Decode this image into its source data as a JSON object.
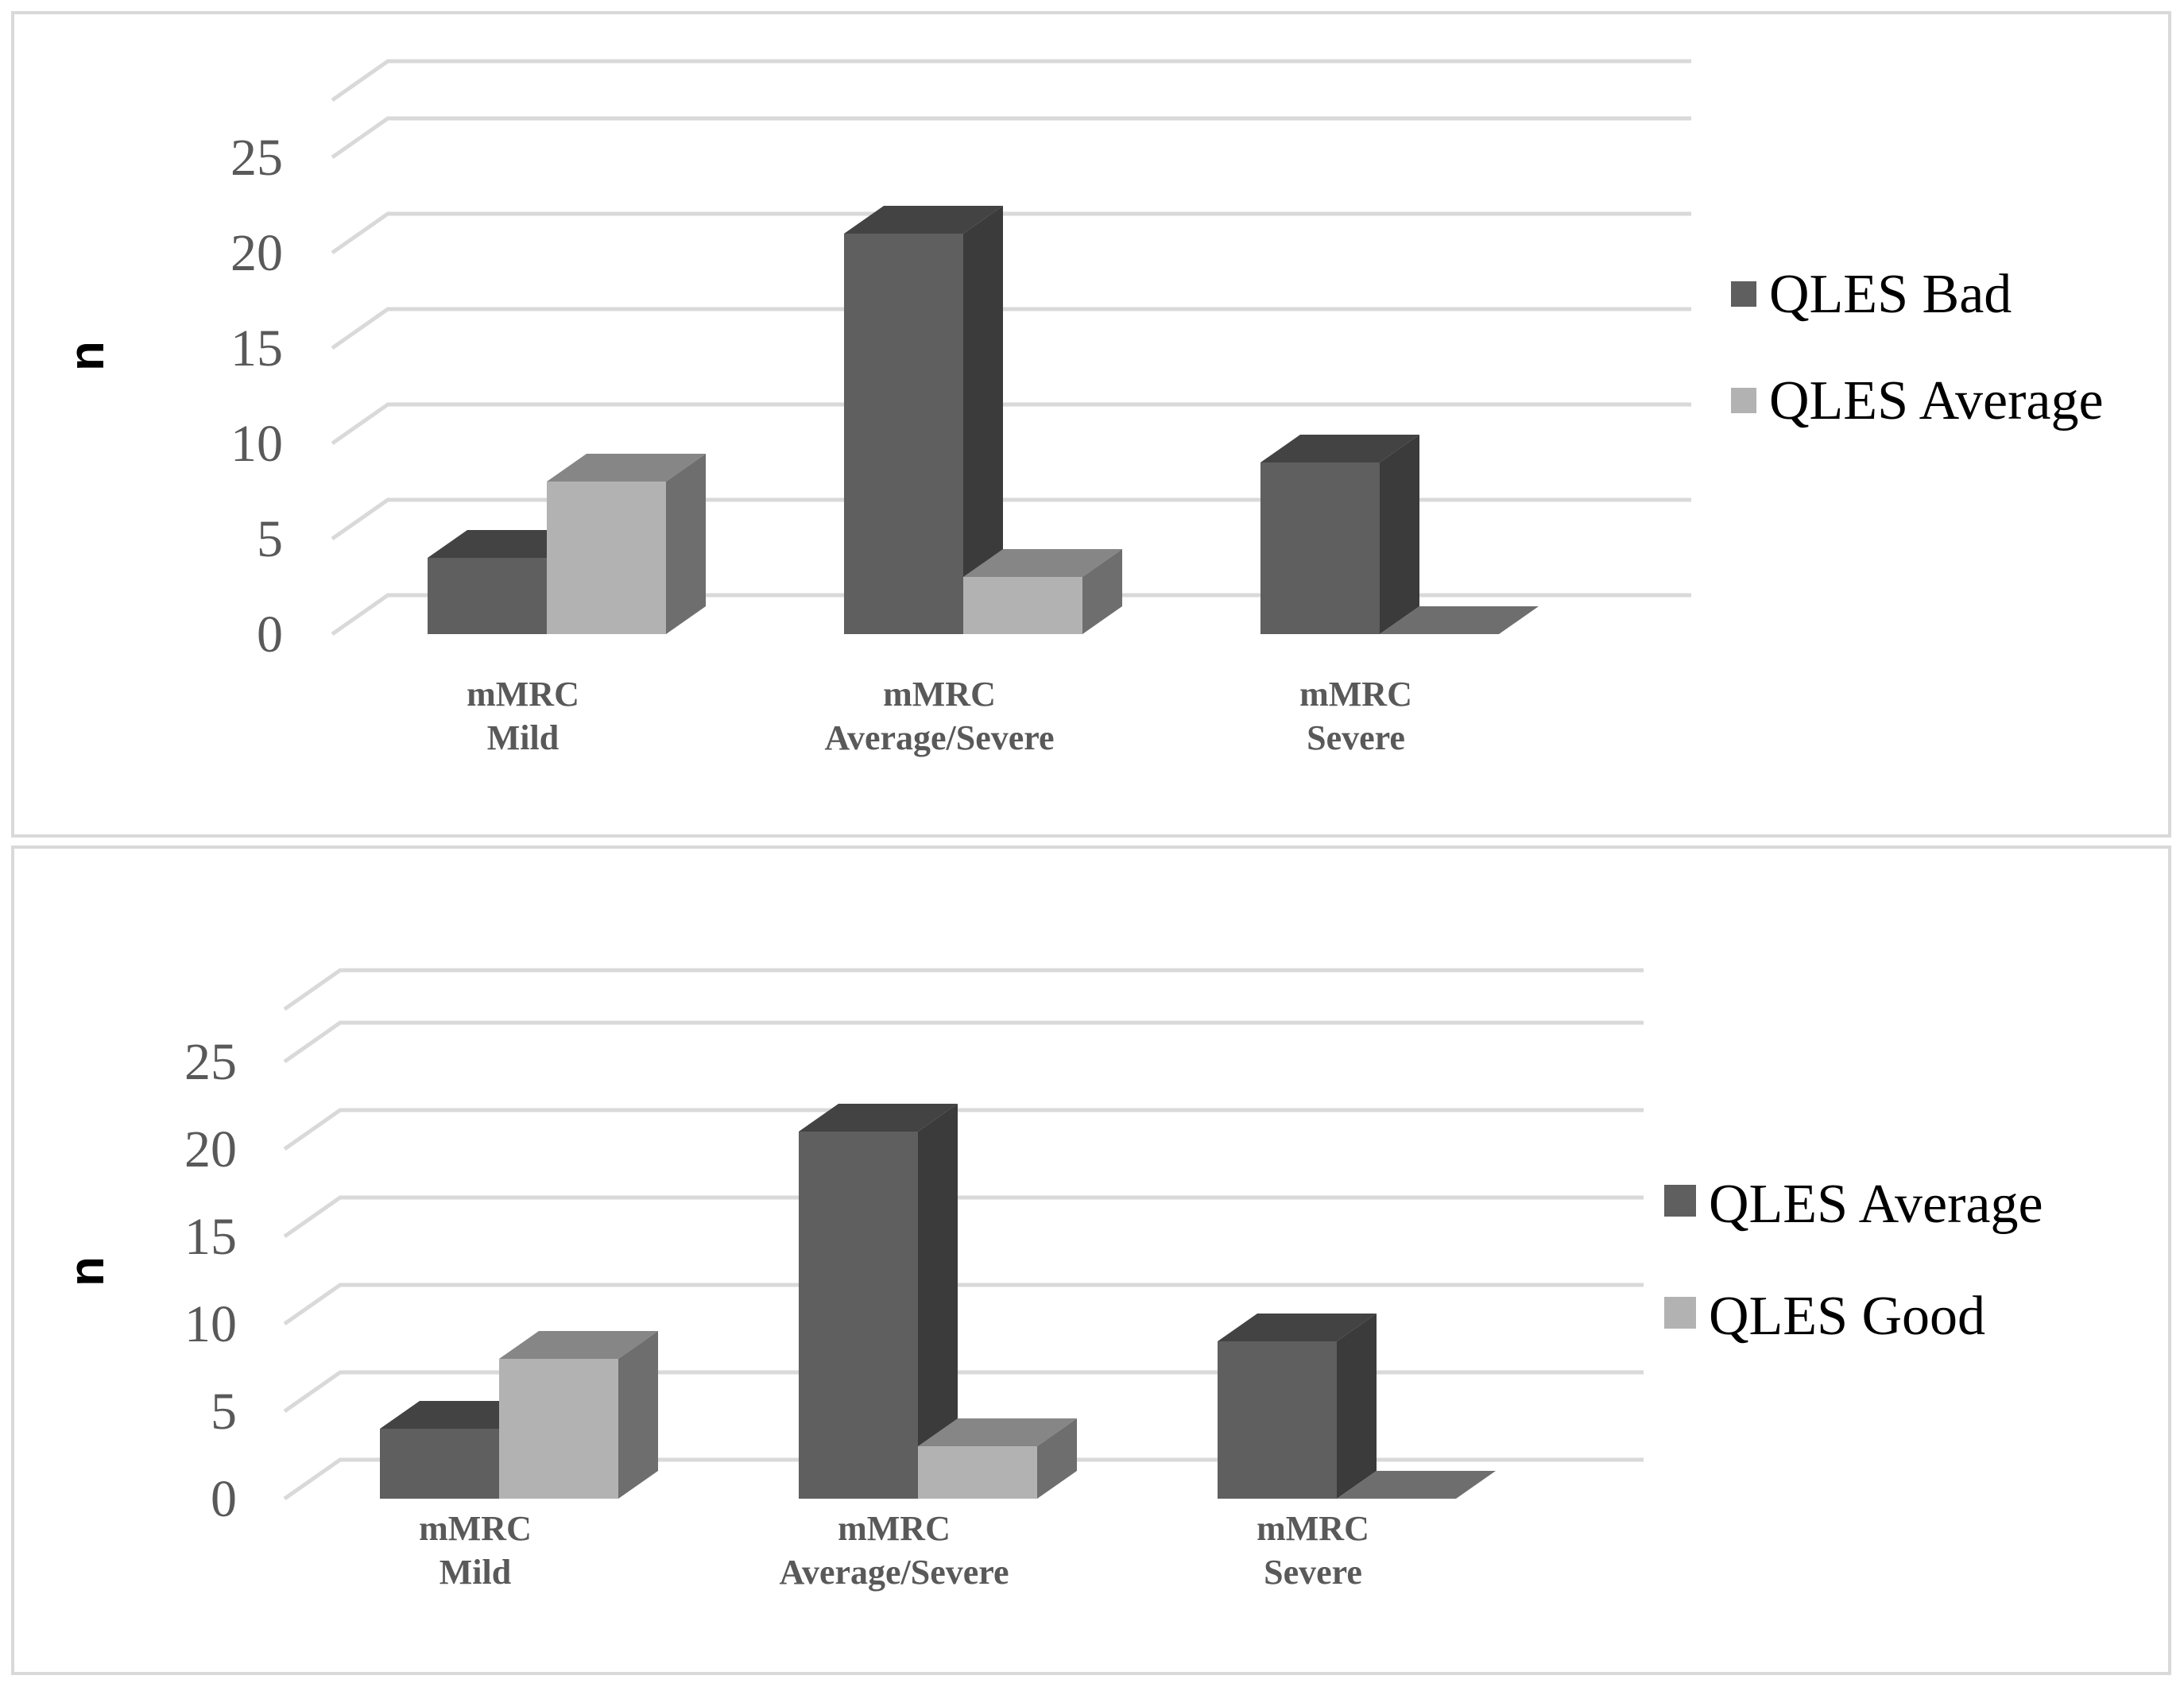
{
  "chart_data": [
    {
      "type": "bar",
      "categories": [
        [
          "mMRC",
          "Mild"
        ],
        [
          "mMRC",
          "Average/Severe"
        ],
        [
          "mMRC",
          "Severe"
        ]
      ],
      "series": [
        {
          "name": "QLES Bad",
          "values": [
            4,
            21,
            9
          ],
          "color": "#5f5f5f"
        },
        {
          "name": "QLES Average",
          "values": [
            8,
            3,
            0
          ],
          "color": "#b2b2b2"
        }
      ],
      "ylabel": "n",
      "yticks": [
        0,
        5,
        10,
        15,
        20,
        25
      ],
      "ylim": [
        0,
        28
      ],
      "grid": true,
      "legend": "right",
      "style": "3d-clustered"
    },
    {
      "type": "bar",
      "categories": [
        [
          "mMRC",
          "Mild"
        ],
        [
          "mMRC",
          "Average/Severe"
        ],
        [
          "mMRC",
          "Severe"
        ]
      ],
      "series": [
        {
          "name": "QLES Average",
          "values": [
            4,
            21,
            9
          ],
          "color": "#5f5f5f"
        },
        {
          "name": "QLES Good",
          "values": [
            8,
            3,
            0
          ],
          "color": "#b2b2b2"
        }
      ],
      "ylabel": "n",
      "yticks": [
        0,
        5,
        10,
        15,
        20,
        25
      ],
      "ylim": [
        0,
        28
      ],
      "grid": true,
      "legend": "right",
      "style": "3d-clustered"
    }
  ]
}
